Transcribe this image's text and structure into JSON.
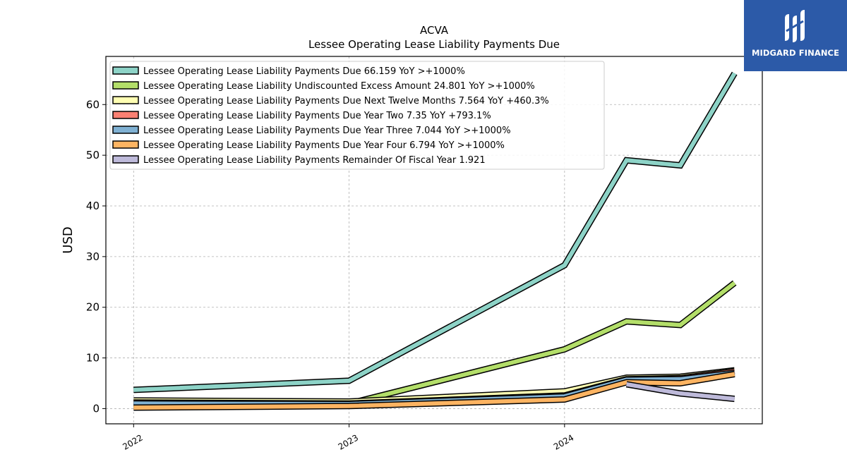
{
  "brand": {
    "name": "MIDGARD FINANCE",
    "color": "#2c5aa8"
  },
  "chart_data": {
    "type": "line",
    "title": "ACVA",
    "subtitle": "Lessee Operating Lease Liability Payments Due",
    "xlabel": "",
    "ylabel": "USD",
    "x_ticks": [
      "2022",
      "2023",
      "2024"
    ],
    "x": [
      "2022-01-01",
      "2023-01-01",
      "2024-01-01",
      "2024-04-15",
      "2024-07-15",
      "2024-10-15"
    ],
    "xlim": [
      "2021-11-15",
      "2024-12-01"
    ],
    "ylim": [
      -3,
      69.5
    ],
    "y_ticks": [
      0,
      10,
      20,
      30,
      40,
      50,
      60
    ],
    "grid": true,
    "legend_position": "top-left",
    "series": [
      {
        "name": "Lessee Operating Lease Liability Payments Due  66.159 YoY >+1000%",
        "color": "#8dd3c7",
        "values": [
          3.7,
          5.5,
          28.3,
          49.0,
          48.0,
          66.159
        ]
      },
      {
        "name": "Lessee Operating Lease Liability Undiscounted Excess Amount  24.801 YoY >+1000%",
        "color": "#b3de69",
        "values": [
          1.0,
          1.0,
          11.7,
          17.2,
          16.5,
          24.801
        ]
      },
      {
        "name": "Lessee Operating Lease Liability Payments Due Next Twelve Months  7.564 YoY +460.3%",
        "color": "#ffffb3",
        "values": [
          1.6,
          1.4,
          3.4,
          6.1,
          6.3,
          7.564
        ]
      },
      {
        "name": "Lessee Operating Lease Liability Payments Due Year Two  7.35 YoY +793.1%",
        "color": "#fb8072",
        "values": [
          1.2,
          1.0,
          2.6,
          5.8,
          6.0,
          7.35
        ]
      },
      {
        "name": "Lessee Operating Lease Liability Payments Due Year Three  7.044 YoY >+1000%",
        "color": "#80b1d3",
        "values": [
          1.0,
          0.9,
          2.4,
          5.7,
          5.8,
          7.044
        ]
      },
      {
        "name": "Lessee Operating Lease Liability Payments Due Year Four  6.794 YoY >+1000%",
        "color": "#fdb462",
        "values": [
          0.2,
          0.5,
          1.8,
          5.2,
          5.0,
          6.794
        ]
      },
      {
        "name": "Lessee Operating Lease Liability Payments Remainder Of Fiscal Year  1.921",
        "color": "#bebada",
        "values": [
          null,
          null,
          null,
          4.8,
          3.0,
          1.921
        ]
      }
    ]
  }
}
